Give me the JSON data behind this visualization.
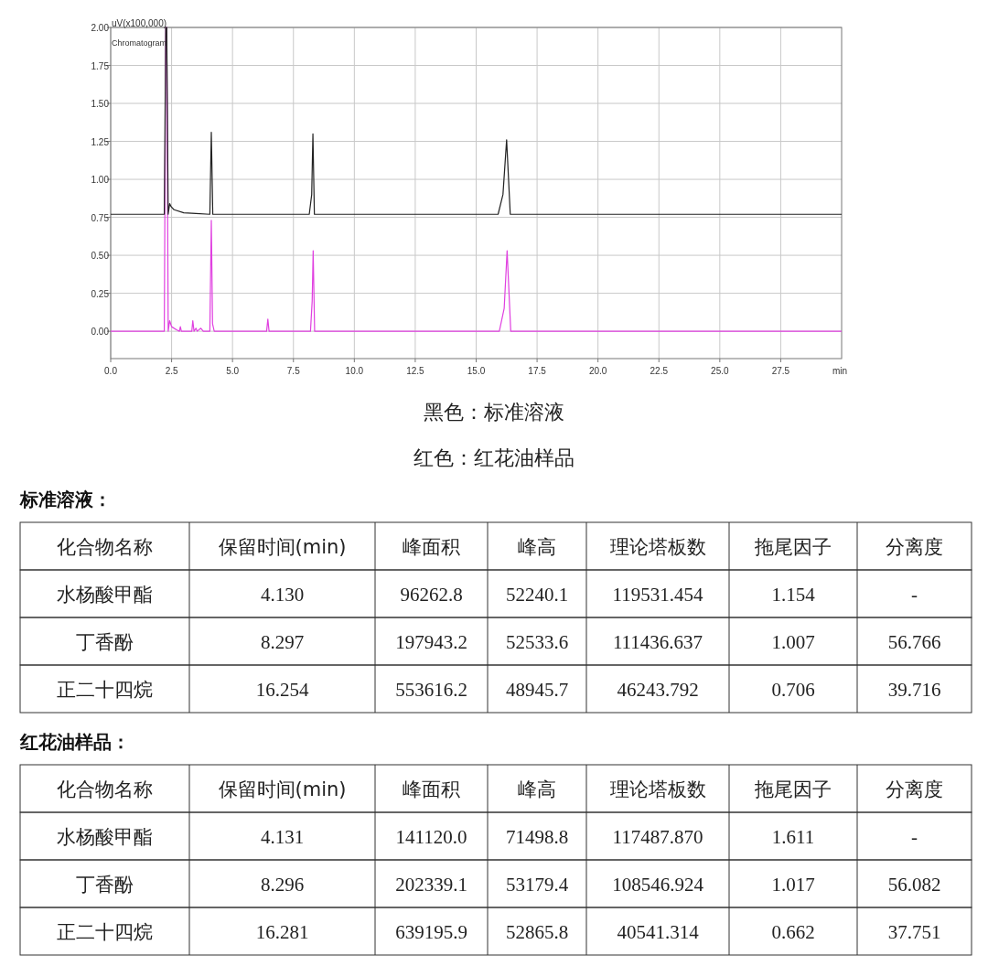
{
  "chart_data": [
    {
      "type": "line",
      "ylabel": "uV(x100,000)",
      "xlabel": "min",
      "annotations": [
        "Chromatogram",
        "黑色：标准溶液",
        "红色：红花油样品"
      ],
      "xlim": [
        0,
        30
      ],
      "ylim": [
        -0.18,
        2.0
      ],
      "xticks": [
        {
          "value": 0,
          "label": "0.0"
        },
        {
          "value": 2.5,
          "label": "2.5"
        },
        {
          "value": 5,
          "label": "5.0"
        },
        {
          "value": 7.5,
          "label": "7.5"
        },
        {
          "value": 10,
          "label": "10.0"
        },
        {
          "value": 12.5,
          "label": "12.5"
        },
        {
          "value": 15,
          "label": "15.0"
        },
        {
          "value": 17.5,
          "label": "17.5"
        },
        {
          "value": 20,
          "label": "20.0"
        },
        {
          "value": 22.5,
          "label": "22.5"
        },
        {
          "value": 25,
          "label": "25.0"
        },
        {
          "value": 27.5,
          "label": "27.5"
        }
      ],
      "yticks": [
        {
          "value": 0,
          "label": "0.00"
        },
        {
          "value": 0.25,
          "label": "0.25"
        },
        {
          "value": 0.5,
          "label": "0.50"
        },
        {
          "value": 0.75,
          "label": "0.75"
        },
        {
          "value": 1,
          "label": "1.00"
        },
        {
          "value": 1.25,
          "label": "1.25"
        },
        {
          "value": 1.5,
          "label": "1.50"
        },
        {
          "value": 1.75,
          "label": "1.75"
        },
        {
          "value": 2,
          "label": "2.00"
        }
      ],
      "grid": true,
      "line_style": "solid",
      "series": [
        {
          "color": "#e040e0",
          "x": [
            0,
            2.2,
            2.26,
            2.3,
            2.36,
            2.42,
            2.5,
            2.7,
            2.82,
            2.86,
            2.9,
            3.33,
            3.37,
            3.42,
            3.5,
            3.55,
            3.7,
            3.8,
            4.07,
            4.13,
            4.18,
            4.25,
            6.4,
            6.45,
            6.5,
            8.2,
            8.27,
            8.31,
            8.37,
            15.95,
            16.15,
            16.27,
            16.42,
            30
          ],
          "values": [
            0,
            0,
            2.0,
            2.0,
            0,
            0.07,
            0.03,
            0.01,
            0,
            0.03,
            0,
            0,
            0.07,
            0,
            0.02,
            0,
            0.02,
            0,
            0,
            0.73,
            0.05,
            0,
            0,
            0.08,
            0,
            0,
            0.2,
            0.53,
            0,
            0,
            0.15,
            0.53,
            0,
            0
          ]
        },
        {
          "color": "#222222",
          "x": [
            0,
            2.2,
            2.26,
            2.3,
            2.36,
            2.42,
            2.48,
            2.6,
            3.0,
            3.5,
            4.07,
            4.13,
            4.19,
            8.15,
            8.25,
            8.3,
            8.36,
            15.9,
            16.1,
            16.25,
            16.4,
            30
          ],
          "values": [
            0.77,
            0.77,
            2.0,
            2.0,
            0.77,
            0.84,
            0.82,
            0.8,
            0.78,
            0.775,
            0.77,
            1.31,
            0.77,
            0.77,
            0.9,
            1.3,
            0.77,
            0.77,
            0.9,
            1.26,
            0.77,
            0.77
          ]
        }
      ]
    },
    {
      "type": "other",
      "title": "标准溶液：",
      "categories": [
        "化合物名称",
        "保留时间(min)",
        "峰面积",
        "峰高",
        "理论塔板数",
        "拖尾因子",
        "分离度"
      ],
      "cell_labels": [
        [
          "水杨酸甲酯",
          "4.130",
          "96262.8",
          "52240.1",
          "119531.454",
          "1.154",
          "-"
        ],
        [
          "丁香酚",
          "8.297",
          "197943.2",
          "52533.6",
          "111436.637",
          "1.007",
          "56.766"
        ],
        [
          "正二十四烷",
          "16.254",
          "553616.2",
          "48945.7",
          "46243.792",
          "0.706",
          "39.716"
        ]
      ]
    },
    {
      "type": "other",
      "title": "红花油样品：",
      "categories": [
        "化合物名称",
        "保留时间(min)",
        "峰面积",
        "峰高",
        "理论塔板数",
        "拖尾因子",
        "分离度"
      ],
      "cell_labels": [
        [
          "水杨酸甲酯",
          "4.131",
          "141120.0",
          "71498.8",
          "117487.870",
          "1.611",
          "-"
        ],
        [
          "丁香酚",
          "8.296",
          "202339.1",
          "53179.4",
          "108546.924",
          "1.017",
          "56.082"
        ],
        [
          "正二十四烷",
          "16.281",
          "639195.9",
          "52865.8",
          "40541.314",
          "0.662",
          "37.751"
        ]
      ]
    }
  ]
}
